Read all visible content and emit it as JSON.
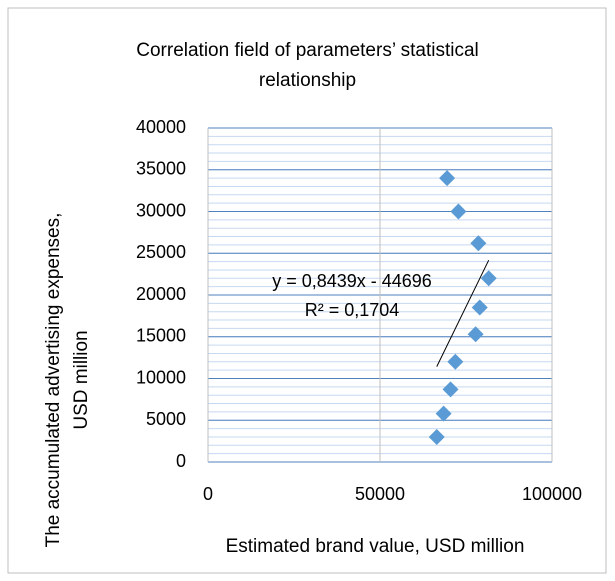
{
  "chart_data": {
    "type": "scatter",
    "title": "Correlation field of parameters’ statistical relationship",
    "x_label": "Estimated brand value, USD million",
    "y_label": "The accumulated advertising expenses, USD million",
    "x": [
      69500,
      72800,
      78600,
      81600,
      79000,
      77800,
      71900,
      70500,
      68500,
      66500
    ],
    "values": [
      34000,
      30000,
      26200,
      22000,
      18500,
      15300,
      12000,
      8700,
      5800,
      3000
    ],
    "color": "#5b9bd5",
    "xlim": [
      0,
      100000
    ],
    "xticks": [
      0,
      50000,
      100000
    ],
    "ylim": [
      0,
      40000
    ],
    "yticks": [
      0,
      5000,
      10000,
      15000,
      20000,
      25000,
      30000,
      35000,
      40000
    ],
    "grid": true,
    "minor_grid": 1000,
    "trendline": {
      "slope": 0.8439,
      "intercept": -44696,
      "equation": "y = 0,8439x - 44696",
      "r2": "R² = 0,1704"
    }
  }
}
